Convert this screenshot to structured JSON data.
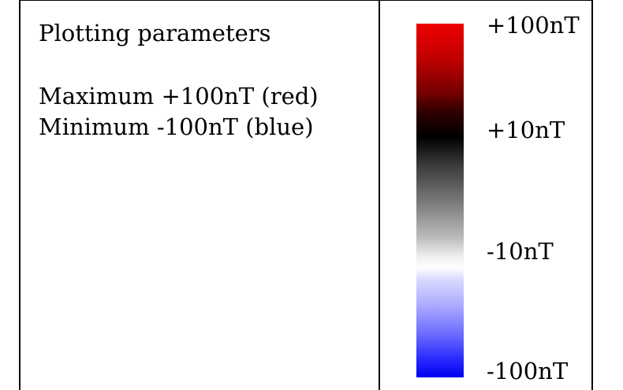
{
  "parameters": {
    "title": "Plotting parameters",
    "maximum": "Maximum +100nT (red)",
    "minimum": "Minimum -100nT (blue)"
  },
  "colorbar": {
    "colors": {
      "top": "#ee0000",
      "middle_dark": "#000000",
      "middle_light": "#ffffff",
      "bottom": "#0000ee"
    },
    "ticks": [
      "+100nT",
      "+10nT",
      "-10nT",
      "-100nT"
    ]
  }
}
